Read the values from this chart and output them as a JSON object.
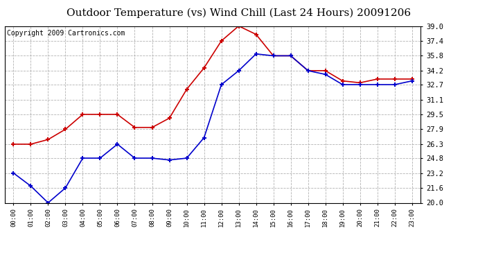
{
  "title": "Outdoor Temperature (vs) Wind Chill (Last 24 Hours) 20091206",
  "copyright": "Copyright 2009 Cartronics.com",
  "hours": [
    "00:00",
    "01:00",
    "02:00",
    "03:00",
    "04:00",
    "05:00",
    "06:00",
    "07:00",
    "08:00",
    "09:00",
    "10:00",
    "11:00",
    "12:00",
    "13:00",
    "14:00",
    "15:00",
    "16:00",
    "17:00",
    "18:00",
    "19:00",
    "20:00",
    "21:00",
    "22:00",
    "23:00"
  ],
  "red_data": [
    26.3,
    26.3,
    26.8,
    27.9,
    29.5,
    29.5,
    29.5,
    28.1,
    28.1,
    29.1,
    32.2,
    34.5,
    37.4,
    39.0,
    38.1,
    35.8,
    35.8,
    34.2,
    34.2,
    33.1,
    32.9,
    33.3,
    33.3,
    33.3
  ],
  "blue_data": [
    23.2,
    21.8,
    20.0,
    21.6,
    24.8,
    24.8,
    26.3,
    24.8,
    24.8,
    24.6,
    24.8,
    27.0,
    32.7,
    34.2,
    36.0,
    35.8,
    35.8,
    34.2,
    33.8,
    32.7,
    32.7,
    32.7,
    32.7,
    33.1
  ],
  "ylim": [
    20.0,
    39.0
  ],
  "yticks": [
    20.0,
    21.6,
    23.2,
    24.8,
    26.3,
    27.9,
    29.5,
    31.1,
    32.7,
    34.2,
    35.8,
    37.4,
    39.0
  ],
  "red_color": "#cc0000",
  "blue_color": "#0000cc",
  "bg_color": "#ffffff",
  "plot_bg_color": "#ffffff",
  "grid_color": "#aaaaaa",
  "title_fontsize": 11,
  "copyright_fontsize": 7
}
